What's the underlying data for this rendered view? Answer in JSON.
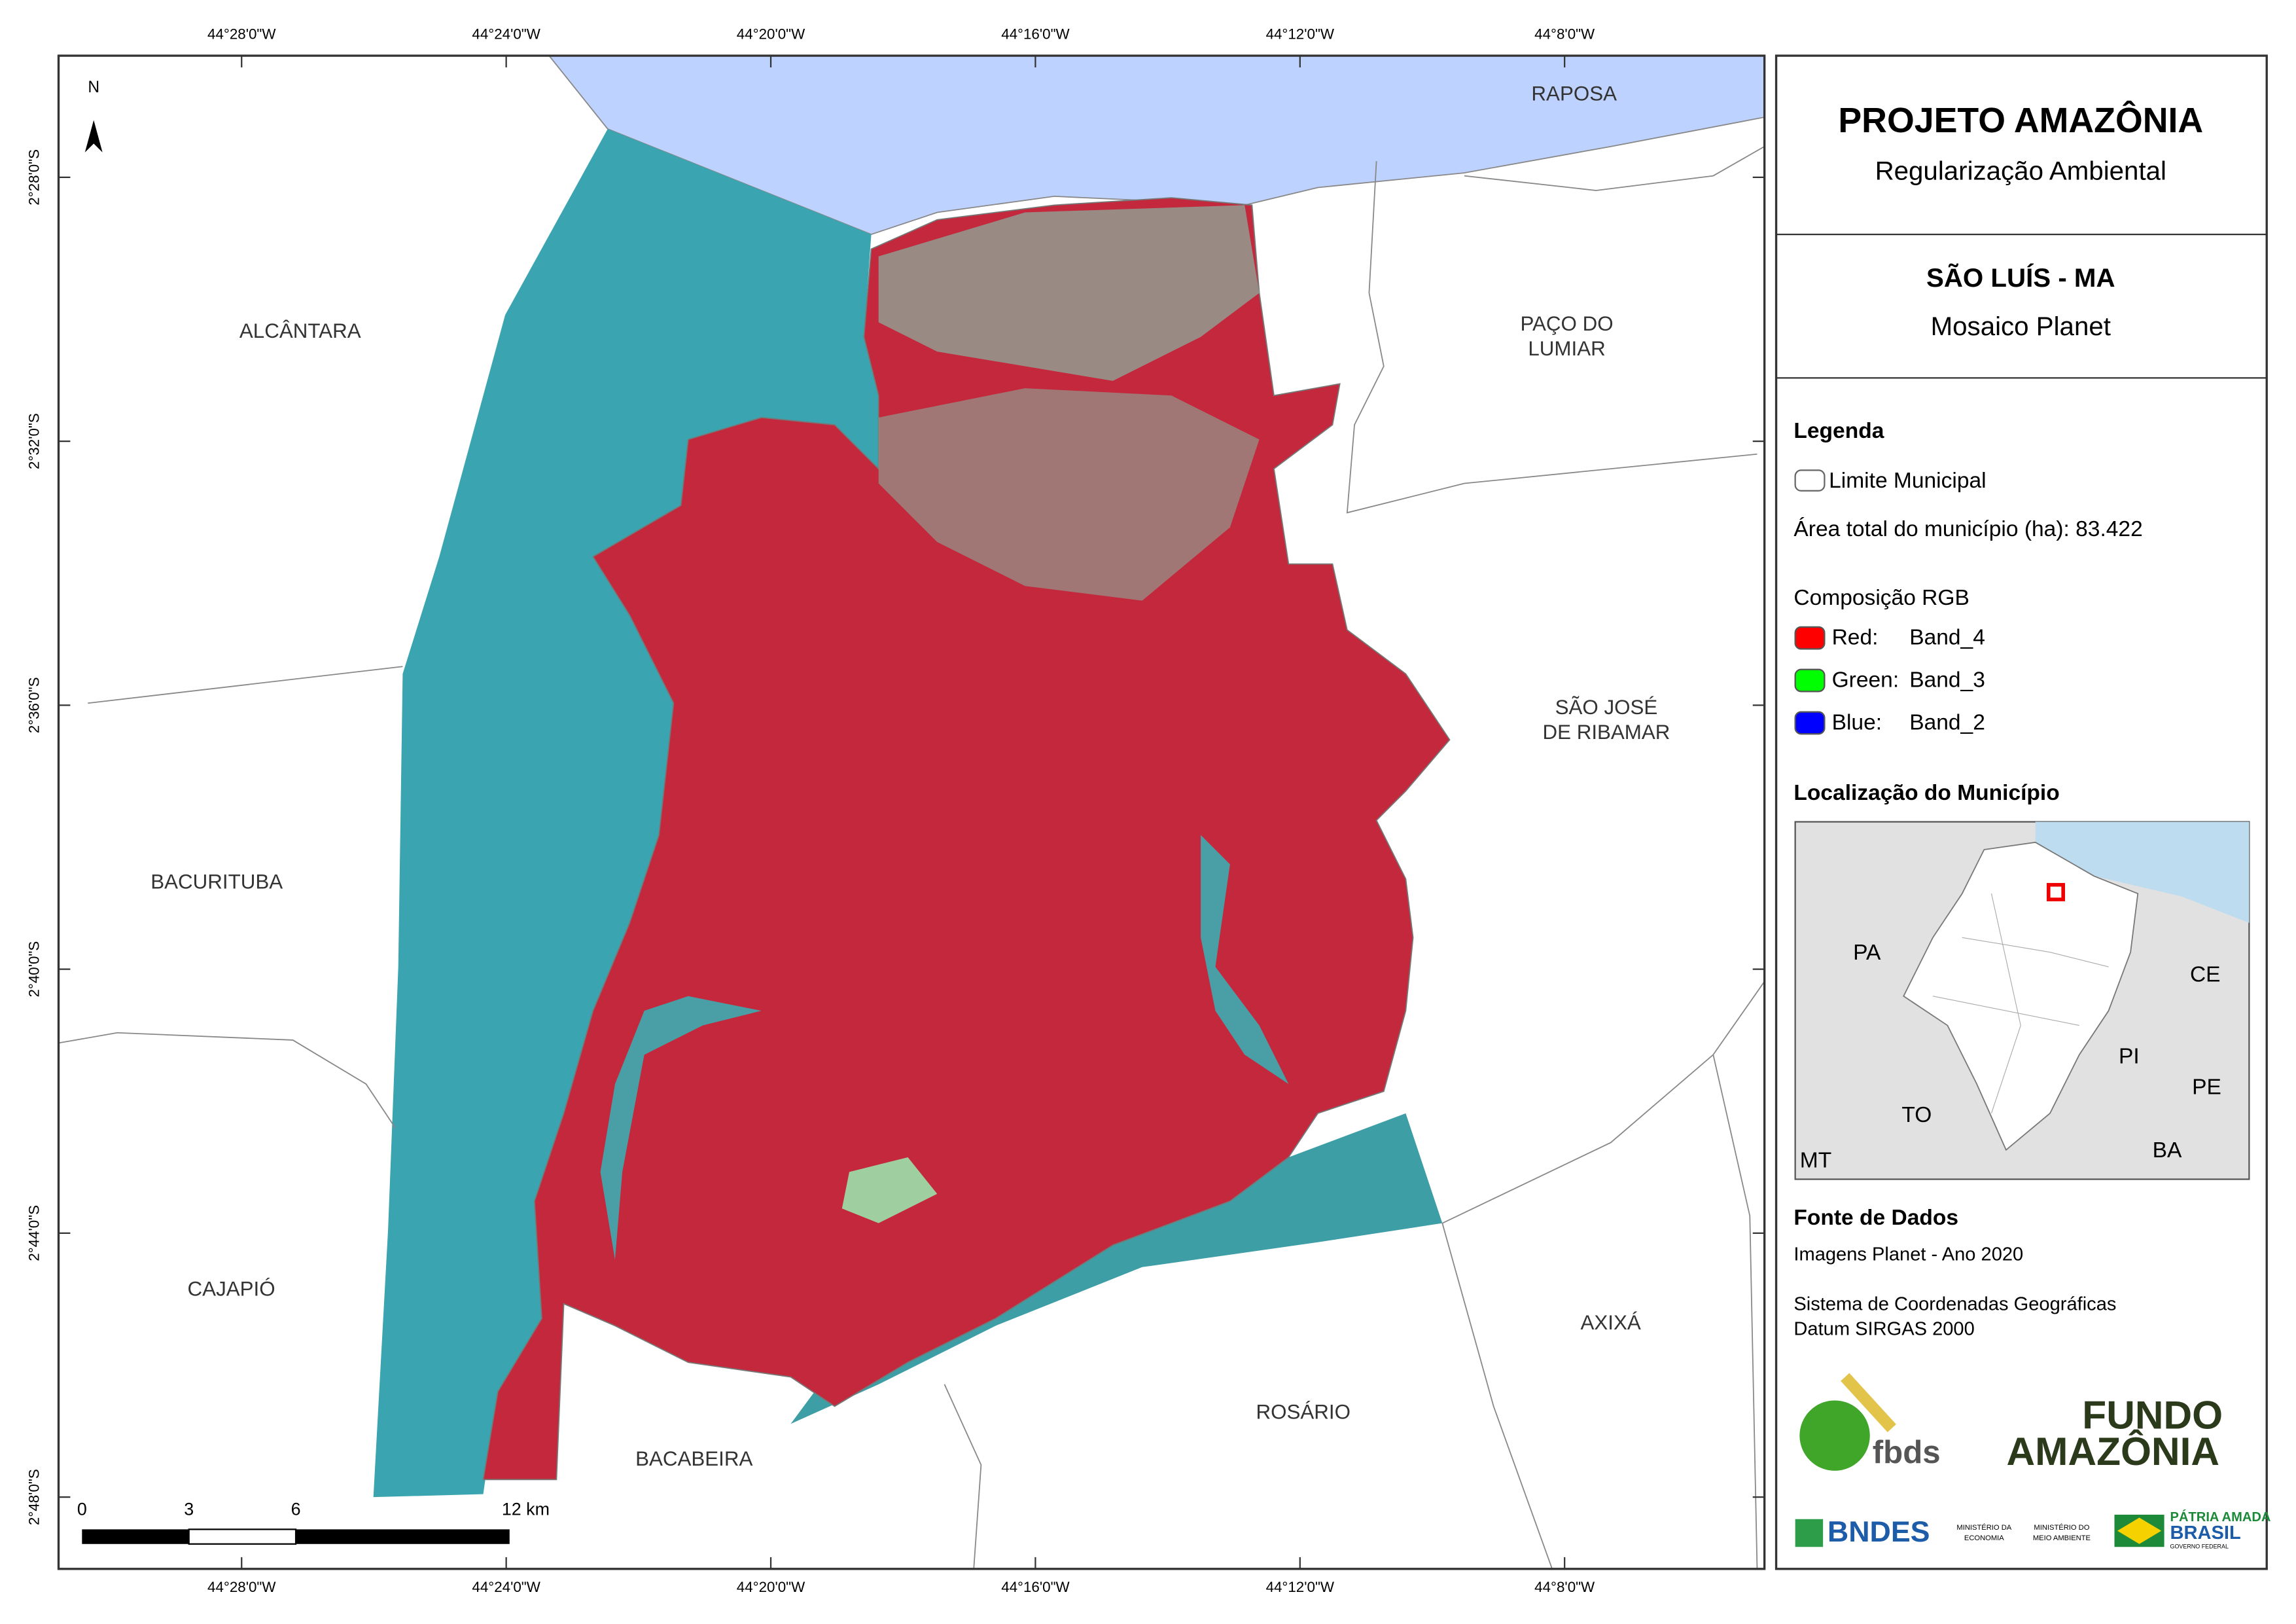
{
  "map": {
    "longitudes": [
      "44°28'0\"W",
      "44°24'0\"W",
      "44°20'0\"W",
      "44°16'0\"W",
      "44°12'0\"W",
      "44°8'0\"W"
    ],
    "latitudes": [
      "2°28'0\"S",
      "2°32'0\"S",
      "2°36'0\"S",
      "2°40'0\"S",
      "2°44'0\"S",
      "2°48'0\"S"
    ],
    "north": "N",
    "municipalities": [
      [
        "RAPOSA"
      ],
      [
        "ALCÂNTARA"
      ],
      [
        "PAÇO DO",
        "LUMIAR"
      ],
      [
        "SÃO JOSÉ",
        "DE RIBAMAR"
      ],
      [
        "BACURITUBA"
      ],
      [
        "CAJAPIÓ"
      ],
      [
        "AXIXÁ"
      ],
      [
        "ROSÁRIO"
      ],
      [
        "BACABEIRA"
      ]
    ],
    "scale_bar": [
      "0",
      "3",
      "6",
      "12 km"
    ]
  },
  "panel": {
    "title": "PROJETO AMAZÔNIA",
    "subtitle": "Regularização Ambiental",
    "place": "SÃO LUÍS - MA",
    "product": "Mosaico Planet",
    "legend": {
      "title": "Legenda",
      "boundary": "Limite Municipal",
      "area": "Área total do município (ha): 83.422",
      "rgb_title": "Composição RGB",
      "bands": [
        {
          "channel": "Red:",
          "band": "Band_4",
          "color": "#ff0000"
        },
        {
          "channel": "Green:",
          "band": "Band_3",
          "color": "#00ff00"
        },
        {
          "channel": "Blue:",
          "band": "Band_2",
          "color": "#0000ff"
        }
      ]
    },
    "location": {
      "title": "Localização do Município",
      "states": [
        "PA",
        "CE",
        "PI",
        "PE",
        "TO",
        "BA",
        "MT"
      ]
    },
    "sources": {
      "title": "Fonte de Dados",
      "lines": [
        "Imagens Planet - Ano 2020",
        "Sistema de Coordenadas Geográficas",
        "Datum SIRGAS 2000"
      ]
    },
    "logos": {
      "fbds": "fbds",
      "fundo": [
        "FUNDO",
        "AMAZÔNIA"
      ],
      "bndes": "BNDES",
      "ministries": [
        [
          "MINISTÉRIO DA",
          "ECONOMIA"
        ],
        [
          "MINISTÉRIO DO",
          "MEIO AMBIENTE"
        ]
      ],
      "brasil": [
        "PÁTRIA AMADA",
        "BRASIL",
        "GOVERNO FEDERAL"
      ]
    }
  }
}
